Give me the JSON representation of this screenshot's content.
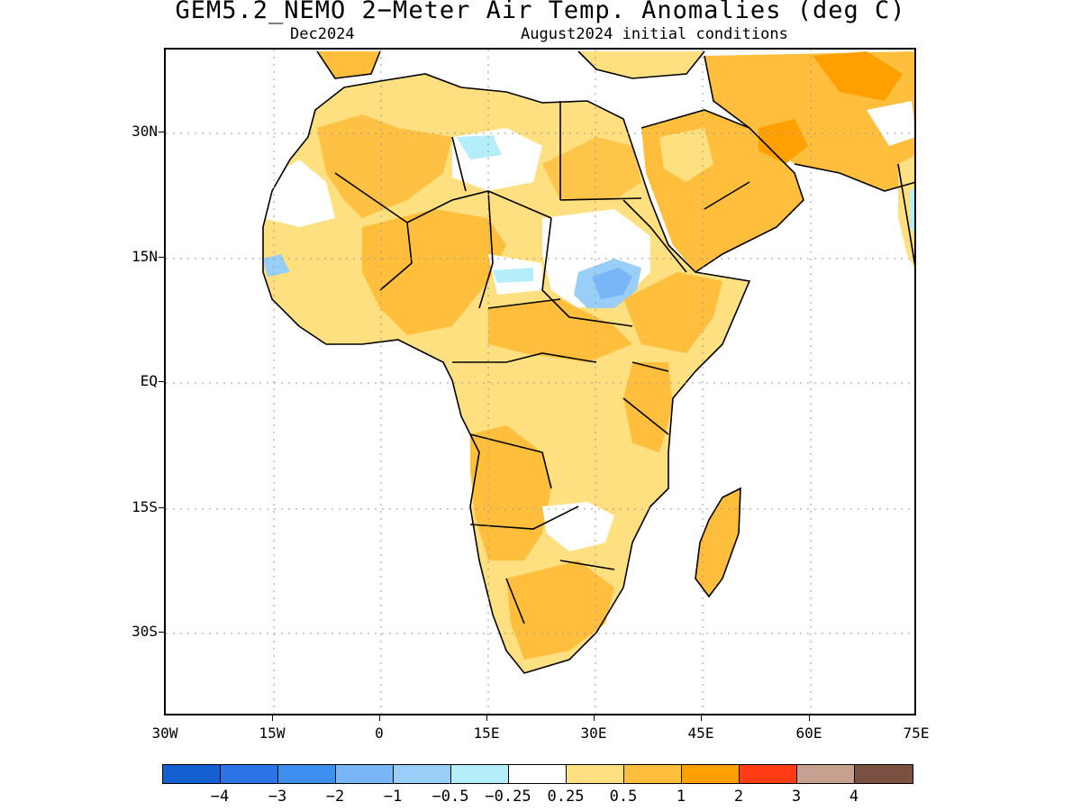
{
  "title": "GEM5.2_NEMO 2−Meter Air Temp. Anomalies (deg C)",
  "subtitle_left": "Dec2024",
  "subtitle_right": "August2024 initial conditions",
  "y_axis": {
    "ticks": [
      "30N",
      "15N",
      "EQ",
      "15S",
      "30S"
    ]
  },
  "x_axis": {
    "ticks": [
      "30W",
      "15W",
      "0",
      "15E",
      "30E",
      "45E",
      "60E",
      "75E"
    ]
  },
  "colorbar": {
    "colors": [
      "#1560d0",
      "#2a74e8",
      "#3d90f0",
      "#78b6f8",
      "#98cef8",
      "#b4eef8",
      "#ffffff",
      "#ffe080",
      "#ffbe3c",
      "#ffa000",
      "#ff3c14",
      "#c8a090",
      "#7a5040"
    ],
    "labels": [
      "−4",
      "−3",
      "−2",
      "−1",
      "−0.5",
      "−0.25",
      "0.25",
      "0.5",
      "1",
      "2",
      "3",
      "4"
    ]
  },
  "map": {
    "region": "Africa and Arabian Peninsula",
    "lon_range": [
      "30W",
      "75E"
    ],
    "lat_range": [
      "40S",
      "37N"
    ]
  }
}
